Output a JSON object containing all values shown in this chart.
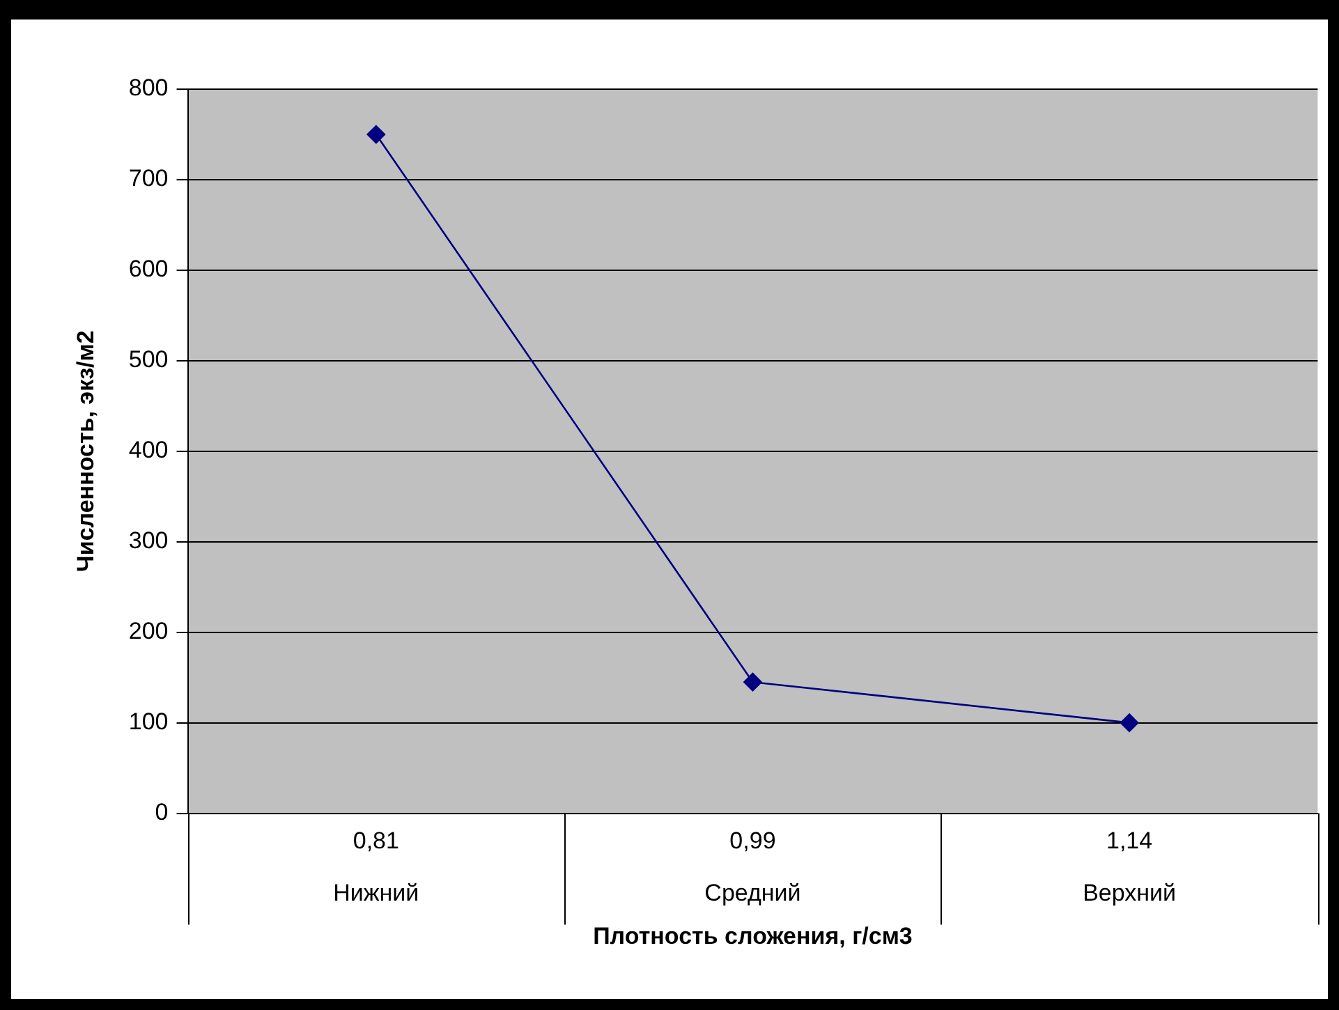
{
  "chart_data": {
    "type": "line",
    "xlabel": "Плотность сложения, г/см3",
    "ylabel": "Численность, экз/м2",
    "categories": [
      "0,81\nНижний",
      "0,99\nСредний",
      "1,14\nВерхний"
    ],
    "series": [
      {
        "color": "#000080",
        "values": [
          750,
          145,
          100
        ]
      }
    ],
    "ylim": [
      0,
      800
    ],
    "yticks": [
      0,
      100,
      200,
      300,
      400,
      500,
      600,
      700,
      800
    ],
    "grid": "y",
    "legend": false,
    "marker": "diamond",
    "line_style": "solid"
  }
}
